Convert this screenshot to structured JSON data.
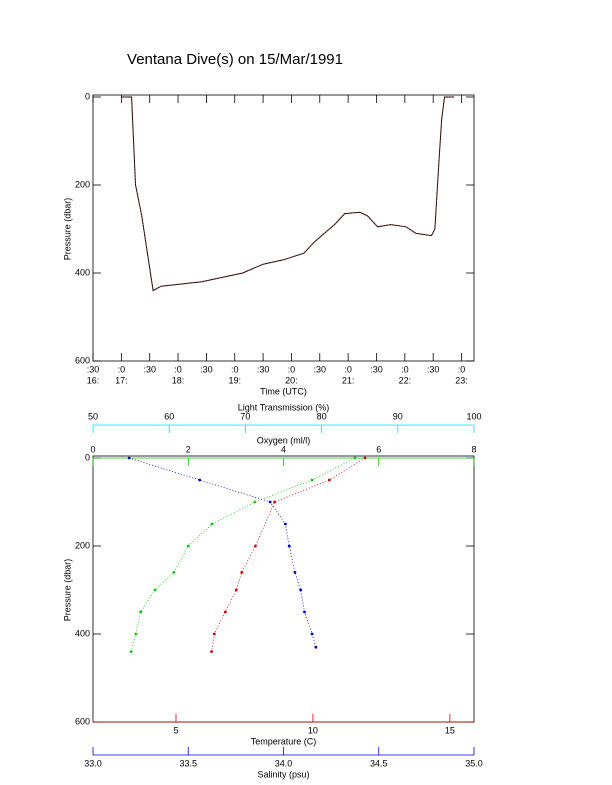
{
  "chart_data": [
    {
      "type": "line",
      "title": "Ventana Dive(s) on 15/Mar/1991",
      "xlabel": "Time (UTC)",
      "ylabel": "Pressure (dbar)",
      "y_inverted": true,
      "ylim": [
        0,
        600
      ],
      "yticks": [
        0,
        200,
        400,
        600
      ],
      "xlim": [
        16.5,
        23.22
      ],
      "xticks": [
        {
          "value": 16.5,
          "label": ":30",
          "hour": "16:"
        },
        {
          "value": 17,
          "label": ":0",
          "hour": "17:"
        },
        {
          "value": 17.5,
          "label": ":30"
        },
        {
          "value": 18,
          "label": ":0",
          "hour": "18:"
        },
        {
          "value": 18.5,
          "label": ":30"
        },
        {
          "value": 19,
          "label": ":0",
          "hour": "19:"
        },
        {
          "value": 19.5,
          "label": ":30"
        },
        {
          "value": 20,
          "label": ":0",
          "hour": "20:"
        },
        {
          "value": 20.5,
          "label": ":30"
        },
        {
          "value": 21,
          "label": ":0",
          "hour": "21:"
        },
        {
          "value": 21.5,
          "label": ":30"
        },
        {
          "value": 22,
          "label": ":0",
          "hour": "22:"
        },
        {
          "value": 22.5,
          "label": ":30"
        },
        {
          "value": 23,
          "label": ":0",
          "hour": "23:"
        }
      ],
      "series": [
        {
          "color": "#000000",
          "x": [
            17.0,
            17.18,
            17.25,
            17.36,
            17.56,
            17.7,
            18.06,
            18.42,
            18.78,
            19.14,
            19.5,
            19.86,
            20.22,
            20.4,
            20.58,
            20.76,
            20.94,
            21.21,
            21.34,
            21.52,
            21.75,
            22.02,
            22.2,
            22.47,
            22.53,
            22.6,
            22.65,
            22.7,
            22.87
          ],
          "values": [
            0,
            0,
            200,
            270,
            440,
            430,
            425,
            420,
            410,
            400,
            380,
            370,
            355,
            330,
            310,
            290,
            265,
            262,
            270,
            295,
            290,
            295,
            310,
            315,
            300,
            150,
            50,
            0,
            0
          ]
        }
      ]
    },
    {
      "type": "scatter",
      "ylabel": "Pressure (dbar)",
      "y_inverted": true,
      "ylim": [
        0,
        600
      ],
      "yticks": [
        0,
        200,
        400,
        600
      ],
      "x_axes": [
        {
          "label": "Oxygen (ml/l)",
          "color": "#00cc00",
          "position": "top",
          "lim": [
            0,
            8
          ],
          "ticks": [
            0,
            2,
            4,
            6,
            8
          ]
        },
        {
          "label": "Light Transmission (%)",
          "color": "#00e0f0",
          "position": "top",
          "lim": [
            50,
            100
          ],
          "ticks": [
            50,
            60,
            70,
            80,
            90,
            100
          ]
        },
        {
          "label": "Temperature (C)",
          "color": "#cc0000",
          "position": "bottom",
          "lim": [
            1.97,
            15.88
          ],
          "ticks": [
            5,
            10,
            15
          ]
        },
        {
          "label": "Salinity (psu)",
          "color": "#0000cc",
          "position": "bottom",
          "lim": [
            33.0,
            35.0
          ],
          "ticks": [
            {
              "value": 33.0,
              "label": "33.0"
            },
            33.5,
            {
              "value": 34.0,
              "label": "34.0"
            },
            34.5,
            {
              "value": 35.0,
              "label": "35.0"
            }
          ]
        }
      ],
      "series": [
        {
          "x_axis": 0,
          "color": "#00cc00",
          "x": [
            5.5,
            4.6,
            3.4,
            2.5,
            2.0,
            1.7,
            1.3,
            1.0,
            0.9,
            0.8
          ],
          "values": [
            0,
            50,
            100,
            150,
            200,
            260,
            300,
            350,
            400,
            440
          ]
        },
        {
          "x_axis": 2,
          "color": "#cc0000",
          "x": [
            11.9,
            10.6,
            8.6,
            7.9,
            7.4,
            7.2,
            6.8,
            6.4,
            6.3
          ],
          "values": [
            0,
            50,
            100,
            200,
            260,
            300,
            350,
            400,
            440
          ]
        },
        {
          "x_axis": 3,
          "color": "#0000cc",
          "x": [
            33.19,
            33.56,
            33.93,
            34.01,
            34.03,
            34.06,
            34.09,
            34.11,
            34.15,
            34.17
          ],
          "values": [
            0,
            50,
            100,
            150,
            200,
            260,
            300,
            350,
            400,
            430
          ]
        }
      ]
    }
  ]
}
